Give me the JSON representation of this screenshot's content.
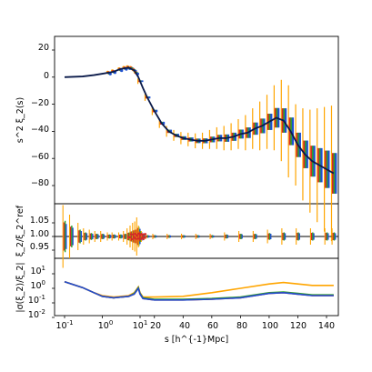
{
  "colors": {
    "orange": "#ffa500",
    "blue": "#1f4fd0",
    "red": "#d62728",
    "green": "#2ca02c",
    "navy": "#0a1a4a",
    "black": "#000000"
  },
  "chart_data": [
    {
      "type": "line",
      "panel": "top",
      "ylabel": "s^2 ξ_2(s)",
      "ylim": [
        -100,
        30
      ],
      "ytick_labels": [
        "20",
        "0",
        "−20",
        "−40",
        "−60",
        "−80"
      ],
      "series": [
        {
          "role": "reference",
          "x": [
            0.1,
            0.3,
            0.6,
            1.0,
            2.0,
            3.0,
            5.0,
            7.0,
            9.0,
            12,
            15,
            20,
            25,
            30,
            35,
            40,
            45,
            50,
            55,
            60,
            65,
            70,
            75,
            80,
            85,
            90,
            95,
            100,
            105,
            110,
            115,
            120,
            125,
            130,
            135,
            140,
            145
          ],
          "y": [
            0,
            0.5,
            1.5,
            2.5,
            4,
            6,
            7,
            5,
            0,
            -8,
            -15,
            -25,
            -34,
            -40,
            -43,
            -45,
            -46,
            -47,
            -47,
            -46,
            -45,
            -45,
            -44,
            -42,
            -41,
            -38,
            -36,
            -33,
            -30,
            -32,
            -40,
            -50,
            -57,
            -62,
            -65,
            -68,
            -71
          ]
        }
      ],
      "errorbars": {
        "x": [
          5,
          10,
          15,
          20,
          25,
          30,
          35,
          40,
          45,
          50,
          55,
          60,
          65,
          70,
          75,
          80,
          85,
          90,
          95,
          100,
          105,
          110,
          115,
          120,
          125,
          130,
          135,
          140,
          145
        ],
        "y": [
          7,
          -3,
          -15,
          -25,
          -34,
          -40,
          -43,
          -45,
          -46,
          -47,
          -47,
          -46,
          -45,
          -45,
          -44,
          -42,
          -41,
          -38,
          -36,
          -33,
          -30,
          -32,
          -40,
          -50,
          -57,
          -62,
          -65,
          -68,
          -71
        ],
        "err": [
          1.5,
          2,
          2.5,
          3,
          3.5,
          4,
          4,
          4.5,
          5,
          5.5,
          6,
          7,
          8,
          9,
          10,
          11,
          13,
          15,
          18,
          20,
          24,
          30,
          34,
          30,
          34,
          38,
          42,
          46,
          50
        ]
      }
    },
    {
      "type": "scatter",
      "panel": "middle",
      "ylabel": "ξ_2/ξ_2^ref",
      "ylim": [
        0.925,
        1.1
      ],
      "ytick_labels": [
        "1.05",
        "1.00",
        "0.95"
      ],
      "reference_line": 1.0
    },
    {
      "type": "line",
      "panel": "bottom",
      "ylabel": "|σ(ξ_2)/ξ_2|",
      "ylim_log10": [
        -2,
        2
      ],
      "ytick_labels": [
        "10",
        "-2",
        "-1",
        "0",
        "1"
      ],
      "x": [
        0.1,
        0.3,
        0.6,
        1.0,
        2.0,
        5.0,
        7.0,
        9.0,
        10,
        12,
        20,
        40,
        60,
        80,
        100,
        110,
        120,
        130,
        145
      ],
      "series": [
        {
          "color_key": "orange",
          "log10_y": [
            0.45,
            0.05,
            -0.3,
            -0.5,
            -0.6,
            -0.5,
            -0.3,
            0.1,
            -0.3,
            -0.6,
            -0.6,
            -0.55,
            -0.3,
            0.0,
            0.3,
            0.4,
            0.3,
            0.2,
            0.2
          ]
        },
        {
          "color_key": "green",
          "log10_y": [
            0.45,
            0.05,
            -0.3,
            -0.55,
            -0.65,
            -0.55,
            -0.35,
            0.05,
            -0.35,
            -0.65,
            -0.75,
            -0.75,
            -0.7,
            -0.6,
            -0.3,
            -0.25,
            -0.35,
            -0.45,
            -0.45
          ]
        },
        {
          "color_key": "red",
          "log10_y": [
            0.45,
            0.05,
            -0.3,
            -0.55,
            -0.65,
            -0.55,
            -0.4,
            0.0,
            -0.4,
            -0.7,
            -0.8,
            -0.8,
            -0.75,
            -0.65,
            -0.35,
            -0.3,
            -0.4,
            -0.5,
            -0.5
          ]
        },
        {
          "color_key": "blue",
          "log10_y": [
            0.45,
            0.05,
            -0.3,
            -0.55,
            -0.65,
            -0.55,
            -0.4,
            0.0,
            -0.4,
            -0.7,
            -0.8,
            -0.8,
            -0.75,
            -0.65,
            -0.35,
            -0.3,
            -0.4,
            -0.5,
            -0.5
          ]
        }
      ]
    }
  ],
  "x_axis": {
    "label": "s [h^{-1}Mpc]",
    "log_tick_labels": [
      "10",
      "10",
      "10"
    ],
    "log_tick_exponents": [
      "-1",
      "0",
      "1"
    ],
    "linear_tick_labels": [
      "20",
      "40",
      "60",
      "80",
      "100",
      "120",
      "140"
    ]
  }
}
